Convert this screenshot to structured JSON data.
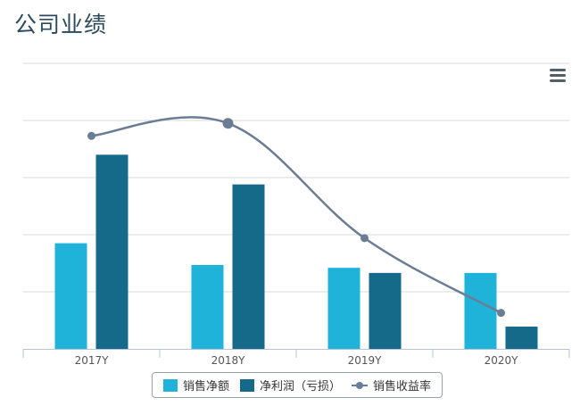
{
  "page": {
    "title": "公司业绩"
  },
  "menu": {
    "icon": "hamburger-menu-icon"
  },
  "colors": {
    "sales": "#1fb3da",
    "profit": "#156a8a",
    "margin": "#6b7d94",
    "grid": "#d9d9d9",
    "axis": "#b8c4d6"
  },
  "chart_data": {
    "type": "bar",
    "categories": [
      "2017Y",
      "2018Y",
      "2019Y",
      "2020Y"
    ],
    "series": [
      {
        "name": "销售净额",
        "type": "bar",
        "values": [
          18.5,
          14.7,
          14.2,
          13.3
        ]
      },
      {
        "name": "净利润（亏损）",
        "type": "bar",
        "values": [
          34.0,
          28.8,
          13.3,
          3.9
        ]
      },
      {
        "name": "销售收益率",
        "type": "line",
        "values": [
          37.3,
          39.5,
          19.4,
          6.3
        ]
      }
    ],
    "ylim": [
      0,
      50
    ],
    "grid": true,
    "y_tick_labels_shown": false,
    "legend": "bottom-center"
  }
}
